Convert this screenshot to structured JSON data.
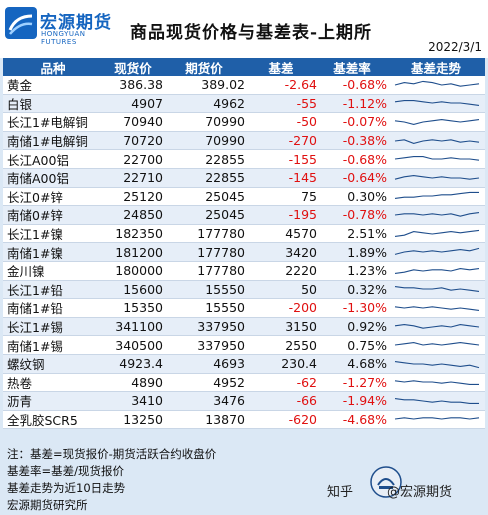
{
  "header": {
    "logo_cn": "宏源期货",
    "logo_en": "HONGYUAN FUTURES",
    "title": "商品现货价格与基差表-上期所",
    "date": "2022/3/1"
  },
  "columns": [
    "品种",
    "现货价",
    "期货价",
    "基差",
    "基差率",
    "基差走势"
  ],
  "rows": [
    {
      "name": "黄金",
      "spot": "386.38",
      "fut": "389.02",
      "basis": "-2.64",
      "rate": "-0.68%",
      "neg": true,
      "spark": [
        0.5,
        0.7,
        0.6,
        0.8,
        0.7,
        0.5,
        0.6,
        0.4,
        0.5,
        0.6
      ]
    },
    {
      "name": "白银",
      "spot": "4907",
      "fut": "4962",
      "basis": "-55",
      "rate": "-1.12%",
      "neg": true,
      "spark": [
        0.6,
        0.7,
        0.7,
        0.6,
        0.5,
        0.6,
        0.5,
        0.5,
        0.4,
        0.3
      ]
    },
    {
      "name": "长江1#电解铜",
      "spot": "70940",
      "fut": "70990",
      "basis": "-50",
      "rate": "-0.07%",
      "neg": true,
      "spark": [
        0.6,
        0.5,
        0.3,
        0.5,
        0.6,
        0.7,
        0.6,
        0.5,
        0.6,
        0.7
      ]
    },
    {
      "name": "南储1#电解铜",
      "spot": "70720",
      "fut": "70990",
      "basis": "-270",
      "rate": "-0.38%",
      "neg": true,
      "spark": [
        0.5,
        0.6,
        0.3,
        0.5,
        0.6,
        0.5,
        0.6,
        0.4,
        0.5,
        0.4
      ]
    },
    {
      "name": "长江A00铝",
      "spot": "22700",
      "fut": "22855",
      "basis": "-155",
      "rate": "-0.68%",
      "neg": true,
      "spark": [
        0.5,
        0.6,
        0.7,
        0.7,
        0.5,
        0.5,
        0.6,
        0.5,
        0.5,
        0.4
      ]
    },
    {
      "name": "南储A00铝",
      "spot": "22710",
      "fut": "22855",
      "basis": "-145",
      "rate": "-0.64%",
      "neg": true,
      "spark": [
        0.4,
        0.6,
        0.7,
        0.6,
        0.5,
        0.6,
        0.5,
        0.5,
        0.4,
        0.5
      ]
    },
    {
      "name": "长江0#锌",
      "spot": "25120",
      "fut": "25045",
      "basis": "75",
      "rate": "0.30%",
      "neg": false,
      "spark": [
        0.3,
        0.4,
        0.4,
        0.5,
        0.5,
        0.6,
        0.6,
        0.7,
        0.8,
        0.8
      ]
    },
    {
      "name": "南储0#锌",
      "spot": "24850",
      "fut": "25045",
      "basis": "-195",
      "rate": "-0.78%",
      "neg": true,
      "spark": [
        0.5,
        0.6,
        0.6,
        0.5,
        0.6,
        0.5,
        0.6,
        0.4,
        0.6,
        0.7
      ]
    },
    {
      "name": "长江1#镍",
      "spot": "182350",
      "fut": "177780",
      "basis": "4570",
      "rate": "2.51%",
      "neg": false,
      "spark": [
        0.3,
        0.4,
        0.7,
        0.6,
        0.5,
        0.6,
        0.7,
        0.6,
        0.7,
        0.8
      ]
    },
    {
      "name": "南储1#镍",
      "spot": "181200",
      "fut": "177780",
      "basis": "3420",
      "rate": "1.89%",
      "neg": false,
      "spark": [
        0.3,
        0.5,
        0.6,
        0.5,
        0.6,
        0.5,
        0.6,
        0.7,
        0.6,
        0.8
      ]
    },
    {
      "name": "金川镍",
      "spot": "180000",
      "fut": "177780",
      "basis": "2220",
      "rate": "1.23%",
      "neg": false,
      "spark": [
        0.3,
        0.4,
        0.6,
        0.5,
        0.6,
        0.6,
        0.5,
        0.7,
        0.6,
        0.7
      ]
    },
    {
      "name": "长江1#铅",
      "spot": "15600",
      "fut": "15550",
      "basis": "50",
      "rate": "0.32%",
      "neg": false,
      "spark": [
        0.7,
        0.6,
        0.6,
        0.5,
        0.5,
        0.6,
        0.4,
        0.5,
        0.4,
        0.3
      ]
    },
    {
      "name": "南储1#铅",
      "spot": "15350",
      "fut": "15550",
      "basis": "-200",
      "rate": "-1.30%",
      "neg": true,
      "spark": [
        0.6,
        0.5,
        0.6,
        0.5,
        0.6,
        0.5,
        0.4,
        0.5,
        0.4,
        0.3
      ]
    },
    {
      "name": "长江1#锡",
      "spot": "341100",
      "fut": "337950",
      "basis": "3150",
      "rate": "0.92%",
      "neg": false,
      "spark": [
        0.6,
        0.7,
        0.6,
        0.4,
        0.5,
        0.6,
        0.5,
        0.7,
        0.6,
        0.5
      ]
    },
    {
      "name": "南储1#锡",
      "spot": "340500",
      "fut": "337950",
      "basis": "2550",
      "rate": "0.75%",
      "neg": false,
      "spark": [
        0.5,
        0.6,
        0.7,
        0.5,
        0.6,
        0.5,
        0.6,
        0.7,
        0.6,
        0.5
      ]
    },
    {
      "name": "螺纹钢",
      "spot": "4923.4",
      "fut": "4693",
      "basis": "230.4",
      "rate": "4.68%",
      "neg": false,
      "spark": [
        0.7,
        0.6,
        0.5,
        0.5,
        0.4,
        0.5,
        0.4,
        0.3,
        0.4,
        0.2
      ]
    },
    {
      "name": "热卷",
      "spot": "4890",
      "fut": "4952",
      "basis": "-62",
      "rate": "-1.27%",
      "neg": true,
      "spark": [
        0.6,
        0.5,
        0.6,
        0.5,
        0.5,
        0.4,
        0.5,
        0.4,
        0.3,
        0.3
      ]
    },
    {
      "name": "沥青",
      "spot": "3410",
      "fut": "3476",
      "basis": "-66",
      "rate": "-1.94%",
      "neg": true,
      "spark": [
        0.7,
        0.6,
        0.6,
        0.5,
        0.4,
        0.5,
        0.4,
        0.4,
        0.3,
        0.3
      ]
    },
    {
      "name": "全乳胶SCR5",
      "spot": "13250",
      "fut": "13870",
      "basis": "-620",
      "rate": "-4.68%",
      "neg": true,
      "spark": [
        0.5,
        0.6,
        0.5,
        0.6,
        0.6,
        0.5,
        0.6,
        0.6,
        0.5,
        0.6
      ]
    }
  ],
  "notes": [
    "注：基差=现货报价-期货活跃合约收盘价",
    "基差率=基差/现货报价",
    "基差走势为近10日走势",
    "宏源期货研究所"
  ],
  "watermark": {
    "zhihu": "知乎",
    "account": "@宏源期货"
  },
  "colors": {
    "header_bg": "#1f5fa8",
    "brand": "#1565c0",
    "negative": "#e01010",
    "spark": "#1f4e8c"
  }
}
